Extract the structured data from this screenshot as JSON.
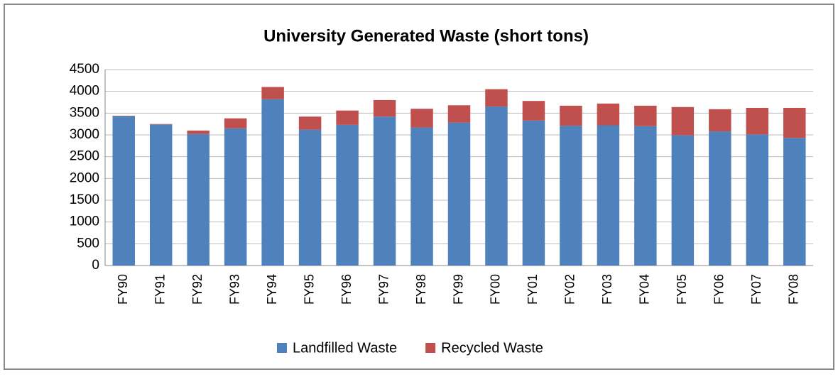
{
  "chart_data": {
    "type": "stacked_bar",
    "title": "University Generated Waste (short tons)",
    "categories": [
      "FY90",
      "FY91",
      "FY92",
      "FY93",
      "FY94",
      "FY95",
      "FY96",
      "FY97",
      "FY98",
      "FY99",
      "FY00",
      "FY01",
      "FY02",
      "FY03",
      "FY04",
      "FY05",
      "FY06",
      "FY07",
      "FY08"
    ],
    "series": [
      {
        "name": "Landfilled Waste",
        "color": "#4f81bd",
        "values": [
          3430,
          3240,
          3020,
          3150,
          3820,
          3120,
          3230,
          3420,
          3170,
          3280,
          3650,
          3330,
          3210,
          3220,
          3200,
          2990,
          3080,
          3010,
          2930
        ]
      },
      {
        "name": "Recycled Waste",
        "color": "#c0504d",
        "values": [
          10,
          10,
          80,
          230,
          280,
          300,
          330,
          380,
          430,
          400,
          400,
          450,
          460,
          500,
          470,
          650,
          510,
          610,
          690
        ]
      }
    ],
    "ylim": [
      0,
      4500
    ],
    "yticks": [
      0,
      500,
      1000,
      1500,
      2000,
      2500,
      3000,
      3500,
      4000,
      4500
    ],
    "grid": true,
    "legend": "bottom"
  }
}
